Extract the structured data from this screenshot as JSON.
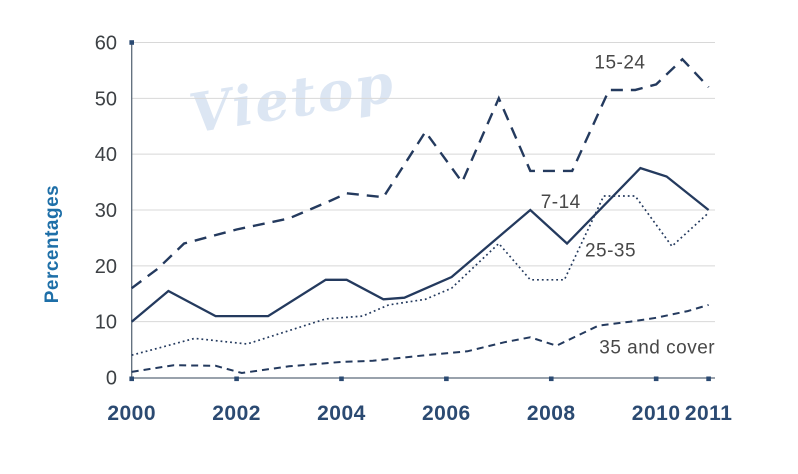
{
  "watermark": "Vietop",
  "colors": {
    "background": "#ffffff",
    "line": "#243a5e",
    "grid": "#d8d8d8",
    "axis": "#5c6b7a",
    "tick_square": "#2b4a72",
    "ytick_label": "#3d4145",
    "xtick_label": "#2b4a72",
    "ylabel": "#1e6fa8",
    "series_label": "#484848",
    "watermark": "#dce6f3"
  },
  "chart_data": {
    "type": "line",
    "title": "",
    "xlabel": "",
    "ylabel": "Percentages",
    "xlim": [
      2000,
      2011
    ],
    "ylim": [
      0,
      60
    ],
    "yticks": [
      0,
      10,
      20,
      30,
      40,
      50,
      60
    ],
    "xticks": [
      2000,
      2002,
      2004,
      2006,
      2008,
      2010,
      2011
    ],
    "grid": "horizontal",
    "legend": "inline-labels-near-lines",
    "series": [
      {
        "name": "15-24",
        "label": "15-24",
        "style": "long-dash",
        "label_x": 2009.31,
        "label_y": 56.5,
        "points": [
          [
            2000,
            16
          ],
          [
            2000.5,
            19.5
          ],
          [
            2001,
            24
          ],
          [
            2002,
            26.5
          ],
          [
            2003,
            28.5
          ],
          [
            2003.8,
            31.7
          ],
          [
            2004.1,
            33
          ],
          [
            2004.8,
            32.3
          ],
          [
            2005.6,
            44
          ],
          [
            2006.3,
            35
          ],
          [
            2007,
            50
          ],
          [
            2007.6,
            37
          ],
          [
            2008.4,
            37
          ],
          [
            2009.1,
            51.5
          ],
          [
            2009.6,
            51.5
          ],
          [
            2010,
            52.5
          ],
          [
            2010.5,
            57
          ],
          [
            2011,
            52
          ]
        ]
      },
      {
        "name": "7-14",
        "label": "7-14",
        "style": "solid",
        "label_x": 2008.18,
        "label_y": 31.5,
        "points": [
          [
            2000,
            10
          ],
          [
            2000.7,
            15.5
          ],
          [
            2001.6,
            11
          ],
          [
            2002.6,
            11
          ],
          [
            2003.7,
            17.5
          ],
          [
            2004.1,
            17.5
          ],
          [
            2004.8,
            14
          ],
          [
            2005.2,
            14.3
          ],
          [
            2006.1,
            18
          ],
          [
            2007.6,
            30
          ],
          [
            2008.3,
            24
          ],
          [
            2009.7,
            37.5
          ],
          [
            2010.2,
            36
          ],
          [
            2011,
            30
          ]
        ]
      },
      {
        "name": "25-35",
        "label": "25-35",
        "style": "dotted",
        "label_x": 2009.13,
        "label_y": 22.8,
        "points": [
          [
            2000,
            4
          ],
          [
            2001.2,
            7
          ],
          [
            2002.2,
            6
          ],
          [
            2003.7,
            10.5
          ],
          [
            2004.4,
            11
          ],
          [
            2004.9,
            13
          ],
          [
            2005.6,
            14
          ],
          [
            2006.1,
            16
          ],
          [
            2007,
            24
          ],
          [
            2007.6,
            17.5
          ],
          [
            2008.25,
            17.5
          ],
          [
            2009,
            32.5
          ],
          [
            2009.6,
            32.5
          ],
          [
            2010.3,
            23.5
          ],
          [
            2011,
            29.5
          ]
        ]
      },
      {
        "name": "35 and cover",
        "label": "35 and cover",
        "style": "short-dash",
        "label_x": 2010.02,
        "label_y": 5.5,
        "points": [
          [
            2000,
            1
          ],
          [
            2000.8,
            2.2
          ],
          [
            2001.6,
            2.1
          ],
          [
            2002.1,
            0.8
          ],
          [
            2003,
            2
          ],
          [
            2004,
            2.8
          ],
          [
            2004.6,
            3
          ],
          [
            2005.6,
            4
          ],
          [
            2006.4,
            4.7
          ],
          [
            2007.1,
            6.3
          ],
          [
            2007.6,
            7.2
          ],
          [
            2008.1,
            5.7
          ],
          [
            2008.9,
            9.3
          ],
          [
            2009.5,
            10
          ],
          [
            2010,
            10.7
          ],
          [
            2010.6,
            11.9
          ],
          [
            2011,
            13
          ]
        ]
      }
    ]
  }
}
